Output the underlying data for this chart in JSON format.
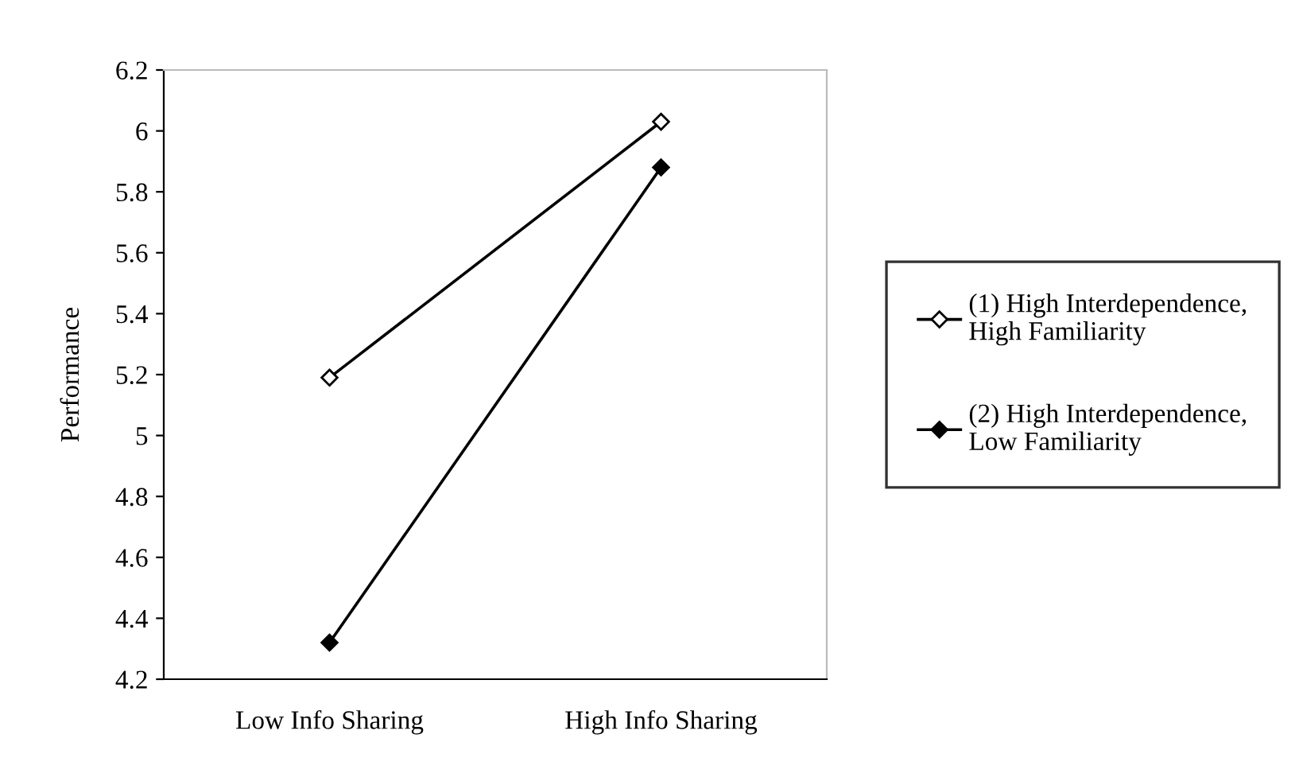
{
  "chart_data": {
    "type": "line",
    "ylabel": "Performance",
    "categories": [
      "Low Info Sharing",
      "High Info Sharing"
    ],
    "series": [
      {
        "name": "(1) High Interdependence,\nHigh Familiarity",
        "color": "#000000",
        "values": [
          5.19,
          6.03
        ],
        "marker": "diamond"
      },
      {
        "name": "(2) High Interdependence,\nLow Familiarity",
        "color": "#000000",
        "values": [
          4.32,
          5.88
        ],
        "marker": "diamond"
      }
    ],
    "ylim": [
      4.2,
      6.2
    ],
    "yticks": [
      4.2,
      4.4,
      4.6,
      4.8,
      5,
      5.2,
      5.4,
      5.6,
      5.8,
      6,
      6.2
    ],
    "grid": false,
    "legend": "right",
    "line_style": "solid"
  }
}
